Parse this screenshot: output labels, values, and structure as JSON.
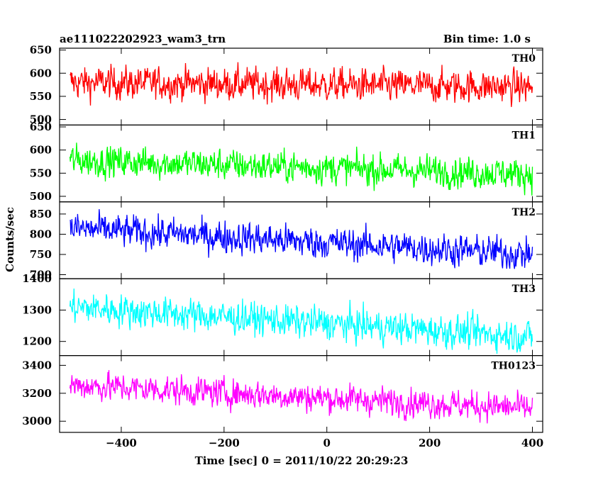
{
  "header": {
    "title": "ae111022202923_wam3_trn",
    "bin_time": "Bin time: 1.0 s"
  },
  "chart_data": {
    "type": "line",
    "title": "ae111022202923_wam3_trn",
    "xlabel": "Time [sec] 0 = 2011/10/22 20:29:23",
    "ylabel": "Counts/sec",
    "xlim": [
      -520,
      420
    ],
    "x_range_data": [
      -500,
      400
    ],
    "x_ticks": [
      -400,
      -200,
      0,
      200,
      400
    ],
    "x_tick_labels": [
      "−400",
      "−200",
      "0",
      "200",
      "400"
    ],
    "panels": [
      {
        "name": "TH0",
        "color": "#ff0000",
        "ylim": [
          488,
          654
        ],
        "y_ticks": [
          500,
          550,
          600,
          650
        ],
        "y_tick_labels": [
          "500",
          "550",
          "600",
          "650"
        ],
        "mean_start": 580,
        "mean_end": 570,
        "noise": 24
      },
      {
        "name": "TH1",
        "color": "#00ff00",
        "ylim": [
          488,
          654
        ],
        "y_ticks": [
          500,
          550,
          600,
          650
        ],
        "y_tick_labels": [
          "500",
          "550",
          "600",
          "650"
        ],
        "mean_start": 578,
        "mean_end": 548,
        "noise": 23
      },
      {
        "name": "TH2",
        "color": "#0000ff",
        "ylim": [
          690,
          880
        ],
        "y_ticks": [
          700,
          750,
          800,
          850
        ],
        "y_tick_labels": [
          "700",
          "750",
          "800",
          "850"
        ],
        "mean_start": 815,
        "mean_end": 750,
        "noise": 27
      },
      {
        "name": "TH3",
        "color": "#00ffff",
        "ylim": [
          1155,
          1400
        ],
        "y_ticks": [
          1200,
          1300,
          1400
        ],
        "y_tick_labels": [
          "1200",
          "1300",
          "1400"
        ],
        "mean_start": 1310,
        "mean_end": 1215,
        "noise": 35
      },
      {
        "name": "TH0123",
        "color": "#ff00ff",
        "ylim": [
          2920,
          3470
        ],
        "y_ticks": [
          3000,
          3200,
          3400
        ],
        "y_tick_labels": [
          "3000",
          "3200",
          "3400"
        ],
        "mean_start": 3260,
        "mean_end": 3090,
        "noise": 70
      }
    ]
  }
}
